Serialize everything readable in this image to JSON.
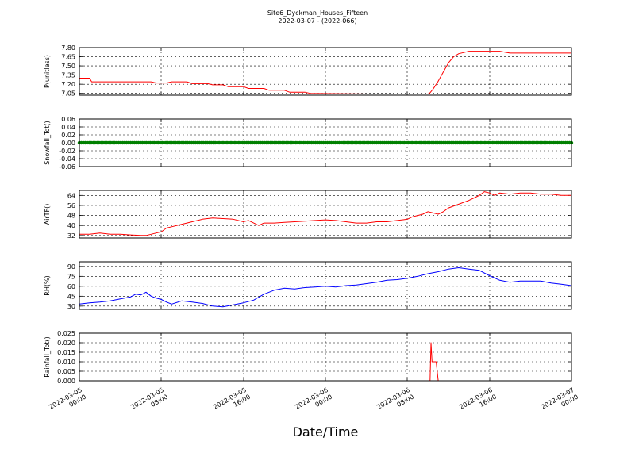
{
  "figure": {
    "title": "Site6_Dyckman_Houses_Fifteen",
    "subtitle": "2022-03-07 - (2022-066)",
    "xlabel": "Date/Time",
    "x_tick_labels": [
      [
        "2022-03-05",
        "00:00"
      ],
      [
        "2022-03-05",
        "08:00"
      ],
      [
        "2022-03-05",
        "16:00"
      ],
      [
        "2022-03-06",
        "00:00"
      ],
      [
        "2022-03-06",
        "08:00"
      ],
      [
        "2022-03-06",
        "16:00"
      ],
      [
        "2022-03-07",
        "00:00"
      ]
    ]
  },
  "chart_data": [
    {
      "type": "line",
      "ylabel": "P(unitless)",
      "ylim": [
        7.02,
        7.8
      ],
      "yticks": [
        "7.80",
        "7.65",
        "7.50",
        "7.35",
        "7.20",
        "7.05"
      ],
      "color": "#ff0000",
      "x_unit": "hours since 2022-03-05 00:00",
      "xlim": [
        0,
        48
      ],
      "grid": true,
      "x": [
        0,
        1,
        1.2,
        7,
        7.5,
        8.5,
        9,
        10.5,
        11,
        12.5,
        13,
        14,
        14.5,
        16,
        16.5,
        18,
        18.5,
        20,
        20.5,
        22,
        22.5,
        28,
        34,
        34.2,
        34.5,
        35,
        35.5,
        36,
        36.5,
        37,
        37.5,
        38,
        40,
        41,
        42,
        48
      ],
      "values": [
        7.3,
        7.3,
        7.24,
        7.24,
        7.22,
        7.22,
        7.24,
        7.24,
        7.21,
        7.21,
        7.19,
        7.19,
        7.16,
        7.16,
        7.13,
        7.13,
        7.1,
        7.1,
        7.07,
        7.07,
        7.05,
        7.04,
        7.04,
        7.06,
        7.12,
        7.25,
        7.4,
        7.55,
        7.65,
        7.7,
        7.72,
        7.74,
        7.74,
        7.74,
        7.71,
        7.71
      ]
    },
    {
      "type": "scatter",
      "ylabel": "Snowfall_Tot()",
      "ylim": [
        -0.06,
        0.06
      ],
      "yticks": [
        "0.06",
        "0.04",
        "0.02",
        "0.00",
        "-0.02",
        "-0.04",
        "-0.06"
      ],
      "color": "#008000",
      "x_unit": "hours since 2022-03-05 00:00",
      "xlim": [
        0,
        48
      ],
      "grid": true,
      "constant_value": 0.0,
      "x_range": [
        0,
        48
      ]
    },
    {
      "type": "line",
      "ylabel": "AirTF()",
      "ylim": [
        30,
        68
      ],
      "yticks": [
        "64",
        "56",
        "48",
        "40",
        "32"
      ],
      "color": "#ff0000",
      "x_unit": "hours since 2022-03-05 00:00",
      "xlim": [
        0,
        48
      ],
      "grid": true,
      "x": [
        0,
        1,
        2,
        3,
        4,
        5,
        6,
        6.5,
        7,
        7.5,
        8,
        8.5,
        9,
        10,
        11,
        12,
        13,
        14,
        15,
        16,
        16.5,
        17,
        17.5,
        18,
        19,
        20,
        21,
        22,
        23,
        24,
        25,
        26,
        27,
        28,
        29,
        30,
        31,
        32,
        32.5,
        33,
        33.5,
        34,
        34.5,
        35,
        35.5,
        36,
        37,
        38,
        38.5,
        39,
        39.5,
        40,
        40.5,
        41,
        42,
        43,
        44,
        45,
        46,
        47,
        48
      ],
      "values": [
        33,
        33,
        34,
        33,
        33,
        32.5,
        32,
        32,
        33,
        34,
        35,
        38,
        39,
        41,
        43,
        45,
        46,
        45.5,
        45,
        43,
        44,
        42,
        40,
        42,
        42,
        42.5,
        43,
        43.5,
        44,
        44.5,
        44,
        43,
        42,
        42,
        43,
        43,
        44,
        45,
        47,
        48,
        49,
        51,
        50,
        49,
        51,
        54,
        57,
        60,
        62,
        64,
        67,
        66,
        64,
        66,
        65,
        66,
        66,
        65,
        65,
        64,
        64
      ]
    },
    {
      "type": "line",
      "ylabel": "RH(%)",
      "ylim": [
        25,
        97
      ],
      "yticks": [
        "90",
        "75",
        "60",
        "45",
        "30"
      ],
      "color": "#0000ff",
      "x_unit": "hours since 2022-03-05 00:00",
      "xlim": [
        0,
        48
      ],
      "grid": true,
      "x": [
        0,
        1,
        2,
        3,
        4,
        5,
        5.5,
        6,
        6.5,
        7,
        7.5,
        8,
        8.5,
        9,
        10,
        11,
        12,
        13,
        14,
        15,
        16,
        17,
        18,
        19,
        20,
        21,
        22,
        23,
        24,
        25,
        26,
        27,
        28,
        29,
        30,
        31,
        32,
        33,
        34,
        35,
        36,
        37,
        38,
        39,
        40,
        41,
        42,
        43,
        44,
        45,
        46,
        47,
        48
      ],
      "values": [
        33,
        35,
        36,
        38,
        41,
        44,
        48,
        47,
        51,
        45,
        42,
        40,
        36,
        33,
        38,
        36,
        34,
        30,
        29,
        32,
        35,
        39,
        48,
        54,
        57,
        56,
        58,
        59,
        60,
        59,
        61,
        62,
        64,
        66,
        69,
        70,
        72,
        75,
        79,
        82,
        86,
        88,
        86,
        84,
        76,
        69,
        66,
        68,
        68,
        68,
        65,
        63,
        61
      ]
    },
    {
      "type": "line",
      "ylabel": "Rainfall_Tot()",
      "ylim": [
        0,
        0.025
      ],
      "yticks": [
        "0.025",
        "0.020",
        "0.015",
        "0.010",
        "0.005",
        "0.000"
      ],
      "color": "#ff0000",
      "x_unit": "hours since 2022-03-05 00:00",
      "xlim": [
        0,
        48
      ],
      "grid": true,
      "x": [
        0,
        34,
        34.2,
        34.3,
        34.4,
        34.6,
        34.8,
        35.0,
        35.2,
        48
      ],
      "values": [
        0,
        0,
        0,
        0.02,
        0.01,
        0.01,
        0.01,
        0,
        0,
        0
      ]
    }
  ]
}
